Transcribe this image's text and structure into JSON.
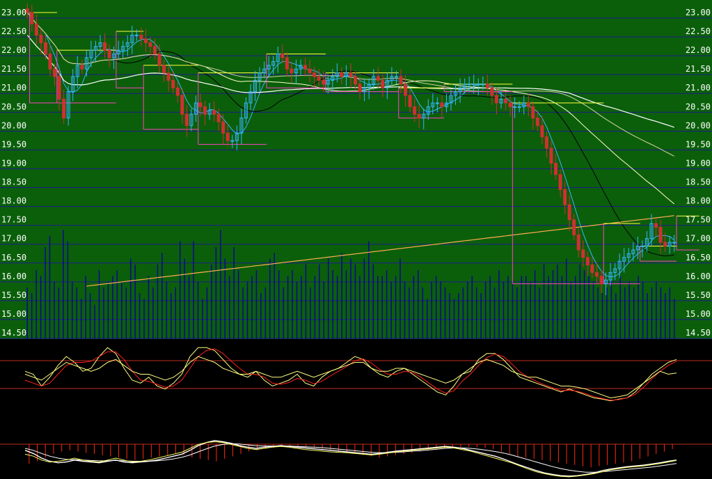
{
  "colors": {
    "price_bg": "#0b5f0b",
    "grid": "#1c1c8a",
    "volume": "#0a0a8a",
    "candle_up": "#35b6ff",
    "candle_down": "#d03030",
    "ma_short": "#ffffff",
    "ma_mid": "#000000",
    "ma_long1": "#ffffc8",
    "ma_long2": "#d2d2a0",
    "ma_orange": "#ffaa50",
    "box_high": "#ffff40",
    "box_low": "#ff40c0",
    "osc_ref": "#c03020",
    "osc_fast": "#ffff80",
    "osc_slow": "#ff2020",
    "macd_hist": "#ff2a10",
    "macd_line": "#ffffff",
    "macd_signal": "#ffff60"
  },
  "chart_data": [
    {
      "type": "candlestick",
      "panel": "price",
      "y_ticks_left": [
        "23.00",
        "22.50",
        "22.00",
        "21.50",
        "21.00",
        "20.50",
        "20.00",
        "19.50",
        "19.00",
        "18.50",
        "18.00",
        "17.50",
        "17.00",
        "16.50",
        "16.00",
        "15.50",
        "15.00",
        "14.50"
      ],
      "y_ticks_right": [
        "23.00",
        "22.50",
        "22.00",
        "21.50",
        "21.00",
        "20.50",
        "20.00",
        "19.50",
        "19.00",
        "18.50",
        "18.00",
        "17.50",
        "17.00",
        "16.50",
        "16.00",
        "15.50",
        "15.00",
        "14.50"
      ],
      "ylim": [
        14.5,
        23.0
      ],
      "grid": true,
      "closes": [
        23.0,
        22.7,
        22.4,
        22.2,
        21.9,
        21.5,
        21.3,
        20.7,
        20.2,
        20.9,
        21.3,
        21.6,
        21.5,
        21.8,
        22.0,
        22.1,
        22.2,
        22.0,
        21.8,
        21.9,
        22.0,
        22.1,
        22.2,
        22.4,
        22.4,
        22.3,
        22.2,
        22.1,
        21.9,
        21.6,
        21.4,
        21.2,
        21.0,
        20.8,
        20.3,
        20.0,
        20.3,
        20.6,
        20.5,
        20.3,
        20.4,
        20.3,
        20.1,
        19.8,
        19.6,
        19.6,
        19.8,
        20.2,
        20.6,
        20.9,
        21.2,
        21.4,
        21.5,
        21.6,
        21.7,
        21.9,
        21.8,
        21.5,
        21.4,
        21.5,
        21.6,
        21.5,
        21.4,
        21.3,
        21.2,
        21.1,
        21.2,
        21.3,
        21.4,
        21.3,
        21.4,
        21.3,
        21.1,
        20.9,
        21.0,
        21.1,
        21.3,
        21.2,
        21.0,
        21.2,
        21.3,
        21.3,
        21.1,
        20.8,
        20.5,
        20.3,
        20.2,
        20.3,
        20.5,
        20.6,
        20.6,
        20.5,
        20.6,
        20.8,
        20.9,
        21.0,
        21.1,
        21.1,
        21.1,
        21.1,
        21.1,
        21.0,
        20.8,
        20.6,
        20.7,
        20.6,
        20.5,
        20.5,
        20.5,
        20.6,
        20.5,
        20.2,
        20.0,
        19.7,
        19.4,
        19.0,
        18.7,
        18.3,
        17.9,
        17.5,
        17.1,
        16.7,
        16.5,
        16.3,
        16.1,
        16.0,
        15.8,
        15.9,
        16.1,
        16.2,
        16.4,
        16.5,
        16.6,
        16.7,
        16.8,
        16.8,
        17.0,
        17.4,
        17.3,
        16.9,
        16.8,
        16.9,
        16.9
      ],
      "box_levels": [
        {
          "from": 1,
          "to": 6,
          "high": 23.0,
          "low": 20.6
        },
        {
          "from": 7,
          "to": 19,
          "high": 22.0,
          "low": 20.6
        },
        {
          "from": 20,
          "to": 25,
          "high": 22.5,
          "low": 21.0
        },
        {
          "from": 26,
          "to": 37,
          "high": 21.6,
          "low": 19.9
        },
        {
          "from": 38,
          "to": 52,
          "high": 21.4,
          "low": 19.5
        },
        {
          "from": 53,
          "to": 65,
          "high": 21.9,
          "low": 21.0
        },
        {
          "from": 66,
          "to": 81,
          "high": 21.4,
          "low": 20.9
        },
        {
          "from": 82,
          "to": 91,
          "high": 21.0,
          "low": 20.2
        },
        {
          "from": 92,
          "to": 106,
          "high": 21.1,
          "low": 20.9
        },
        {
          "from": 107,
          "to": 126,
          "high": 20.6,
          "low": 15.8
        },
        {
          "from": 127,
          "to": 134,
          "high": 17.4,
          "low": 15.8
        },
        {
          "from": 135,
          "to": 142,
          "high": 16.8,
          "low": 16.4
        },
        {
          "from": 143,
          "to": 147,
          "high": 17.6,
          "low": 16.7
        }
      ]
    },
    {
      "type": "bar",
      "panel": "volume",
      "values": [
        0.45,
        0.4,
        0.6,
        0.55,
        0.8,
        0.9,
        0.5,
        0.45,
        0.95,
        0.85,
        0.5,
        0.45,
        0.35,
        0.55,
        0.4,
        0.3,
        0.6,
        0.45,
        0.5,
        0.55,
        0.6,
        0.5,
        0.45,
        0.7,
        0.65,
        0.4,
        0.35,
        0.55,
        0.45,
        0.65,
        0.75,
        0.5,
        0.4,
        0.45,
        0.85,
        0.7,
        0.55,
        0.85,
        0.5,
        0.35,
        0.45,
        0.65,
        0.8,
        0.95,
        0.7,
        0.55,
        0.8,
        0.6,
        0.45,
        0.5,
        0.55,
        0.6,
        0.4,
        0.45,
        0.7,
        0.75,
        0.6,
        0.45,
        0.55,
        0.6,
        0.5,
        0.55,
        0.65,
        0.45,
        0.55,
        0.65,
        0.5,
        0.7,
        0.6,
        0.55,
        0.75,
        0.6,
        0.7,
        0.65,
        0.55,
        0.7,
        0.85,
        0.65,
        0.55,
        0.55,
        0.6,
        0.5,
        0.55,
        0.7,
        0.5,
        0.45,
        0.55,
        0.6,
        0.45,
        0.35,
        0.5,
        0.55,
        0.5,
        0.45,
        0.4,
        0.35,
        0.4,
        0.45,
        0.5,
        0.55,
        0.45,
        0.4,
        0.5,
        0.55,
        0.45,
        0.6,
        0.5,
        0.55,
        0.5,
        0.45,
        0.55,
        0.55,
        0.5,
        0.6,
        0.45,
        0.65,
        0.55,
        0.6,
        0.65,
        0.55,
        0.7,
        0.5,
        0.55,
        0.65,
        0.6,
        0.55,
        0.5,
        0.45,
        0.4,
        0.45,
        0.5,
        0.4,
        0.55,
        0.45,
        0.5,
        0.45,
        0.55,
        0.5,
        0.4,
        0.45,
        0.5,
        0.45,
        0.4,
        0.45,
        0.35
      ]
    },
    {
      "type": "line",
      "panel": "oscillator",
      "series": [
        {
          "values": [
            0.55,
            0.5,
            0.3,
            0.45,
            0.65,
            0.8,
            0.7,
            0.55,
            0.6,
            0.8,
            0.95,
            0.85,
            0.6,
            0.4,
            0.35,
            0.45,
            0.3,
            0.25,
            0.35,
            0.5,
            0.8,
            0.95,
            0.95,
            0.9,
            0.75,
            0.6,
            0.5,
            0.45,
            0.55,
            0.4,
            0.3,
            0.35,
            0.4,
            0.5,
            0.35,
            0.3,
            0.45,
            0.55,
            0.6,
            0.7,
            0.8,
            0.75,
            0.6,
            0.5,
            0.45,
            0.55,
            0.6,
            0.5,
            0.4,
            0.3,
            0.2,
            0.15,
            0.3,
            0.5,
            0.55,
            0.75,
            0.85,
            0.85,
            0.75,
            0.6,
            0.45,
            0.4,
            0.35,
            0.3,
            0.25,
            0.2,
            0.25,
            0.2,
            0.15,
            0.1,
            0.08,
            0.05,
            0.08,
            0.1,
            0.2,
            0.35,
            0.5,
            0.6,
            0.7,
            0.75
          ]
        },
        {
          "values": [
            0.4,
            0.35,
            0.3,
            0.35,
            0.5,
            0.65,
            0.7,
            0.7,
            0.72,
            0.8,
            0.88,
            0.88,
            0.75,
            0.55,
            0.4,
            0.38,
            0.33,
            0.28,
            0.3,
            0.4,
            0.6,
            0.8,
            0.9,
            0.93,
            0.85,
            0.72,
            0.6,
            0.5,
            0.5,
            0.45,
            0.35,
            0.33,
            0.36,
            0.43,
            0.4,
            0.34,
            0.38,
            0.47,
            0.55,
            0.63,
            0.73,
            0.76,
            0.69,
            0.58,
            0.5,
            0.5,
            0.55,
            0.53,
            0.45,
            0.35,
            0.25,
            0.18,
            0.22,
            0.38,
            0.5,
            0.65,
            0.78,
            0.84,
            0.8,
            0.68,
            0.54,
            0.45,
            0.38,
            0.32,
            0.27,
            0.22,
            0.23,
            0.21,
            0.17,
            0.12,
            0.09,
            0.06,
            0.07,
            0.1,
            0.16,
            0.28,
            0.42,
            0.55,
            0.65,
            0.72
          ]
        },
        {
          "values": [
            0.5,
            0.45,
            0.4,
            0.5,
            0.6,
            0.7,
            0.65,
            0.6,
            0.55,
            0.6,
            0.7,
            0.75,
            0.65,
            0.55,
            0.5,
            0.5,
            0.45,
            0.4,
            0.45,
            0.55,
            0.7,
            0.8,
            0.75,
            0.7,
            0.6,
            0.55,
            0.5,
            0.5,
            0.55,
            0.5,
            0.45,
            0.45,
            0.5,
            0.55,
            0.5,
            0.45,
            0.5,
            0.55,
            0.6,
            0.65,
            0.7,
            0.7,
            0.6,
            0.55,
            0.55,
            0.6,
            0.6,
            0.55,
            0.5,
            0.45,
            0.4,
            0.35,
            0.4,
            0.5,
            0.6,
            0.7,
            0.75,
            0.7,
            0.65,
            0.55,
            0.5,
            0.45,
            0.45,
            0.4,
            0.35,
            0.3,
            0.3,
            0.28,
            0.25,
            0.2,
            0.15,
            0.1,
            0.12,
            0.15,
            0.25,
            0.35,
            0.45,
            0.55,
            0.5,
            0.52
          ]
        }
      ]
    },
    {
      "type": "bar+line",
      "panel": "macd",
      "histogram": [
        0.8,
        0.7,
        0.55,
        0.4,
        0.3,
        0.25,
        0.3,
        0.35,
        0.4,
        0.45,
        0.5,
        0.55,
        0.6,
        0.65,
        0.6,
        0.55,
        0.5,
        0.45,
        0.4,
        0.45,
        0.55,
        0.6,
        0.65,
        0.7,
        0.6,
        0.5,
        0.4,
        0.3,
        0.25,
        0.2,
        0.15,
        0.1,
        0.08,
        0.1,
        0.12,
        0.15,
        0.2,
        0.25,
        0.3,
        0.35,
        0.4,
        0.45,
        0.5,
        0.55,
        0.5,
        0.45,
        0.4,
        0.35,
        0.3,
        0.25,
        0.2,
        0.18,
        0.15,
        0.12,
        0.1,
        0.12,
        0.15,
        0.2,
        0.3,
        0.4,
        0.5,
        0.55,
        0.6,
        0.65,
        0.7,
        0.75,
        0.8,
        0.85,
        0.9,
        0.95,
        0.9,
        0.85,
        0.8,
        0.75,
        0.7,
        0.6,
        0.5,
        0.4,
        0.3,
        0.2
      ],
      "series": [
        {
          "values": [
            0.7,
            0.62,
            0.5,
            0.42,
            0.38,
            0.4,
            0.45,
            0.42,
            0.4,
            0.38,
            0.42,
            0.45,
            0.4,
            0.38,
            0.4,
            0.42,
            0.45,
            0.5,
            0.55,
            0.6,
            0.7,
            0.82,
            0.9,
            0.95,
            0.92,
            0.88,
            0.82,
            0.78,
            0.75,
            0.78,
            0.8,
            0.82,
            0.8,
            0.78,
            0.76,
            0.74,
            0.72,
            0.7,
            0.68,
            0.66,
            0.64,
            0.62,
            0.6,
            0.62,
            0.65,
            0.68,
            0.7,
            0.72,
            0.74,
            0.76,
            0.78,
            0.8,
            0.78,
            0.75,
            0.7,
            0.65,
            0.6,
            0.55,
            0.48,
            0.4,
            0.32,
            0.25,
            0.18,
            0.12,
            0.08,
            0.05,
            0.04,
            0.05,
            0.08,
            0.12,
            0.18,
            0.22,
            0.25,
            0.28,
            0.3,
            0.32,
            0.35,
            0.38,
            0.42,
            0.45
          ]
        },
        {
          "values": [
            0.75,
            0.7,
            0.62,
            0.55,
            0.5,
            0.47,
            0.46,
            0.45,
            0.44,
            0.43,
            0.43,
            0.44,
            0.43,
            0.42,
            0.42,
            0.42,
            0.43,
            0.45,
            0.48,
            0.52,
            0.58,
            0.66,
            0.74,
            0.81,
            0.85,
            0.87,
            0.86,
            0.84,
            0.82,
            0.81,
            0.81,
            0.81,
            0.81,
            0.8,
            0.79,
            0.78,
            0.77,
            0.75,
            0.73,
            0.71,
            0.69,
            0.67,
            0.65,
            0.64,
            0.64,
            0.65,
            0.66,
            0.68,
            0.69,
            0.71,
            0.73,
            0.75,
            0.76,
            0.76,
            0.75,
            0.73,
            0.7,
            0.67,
            0.63,
            0.58,
            0.52,
            0.46,
            0.4,
            0.34,
            0.28,
            0.23,
            0.19,
            0.16,
            0.14,
            0.14,
            0.15,
            0.17,
            0.19,
            0.21,
            0.23,
            0.25,
            0.27,
            0.3,
            0.33,
            0.36
          ]
        },
        {
          "values": [
            0.6,
            0.55,
            0.45,
            0.4,
            0.42,
            0.45,
            0.5,
            0.45,
            0.42,
            0.4,
            0.45,
            0.5,
            0.45,
            0.4,
            0.42,
            0.45,
            0.5,
            0.55,
            0.6,
            0.65,
            0.75,
            0.85,
            0.9,
            0.92,
            0.9,
            0.85,
            0.8,
            0.75,
            0.72,
            0.75,
            0.78,
            0.8,
            0.78,
            0.75,
            0.72,
            0.7,
            0.68,
            0.66,
            0.65,
            0.64,
            0.62,
            0.6,
            0.58,
            0.6,
            0.63,
            0.66,
            0.68,
            0.7,
            0.72,
            0.74,
            0.76,
            0.78,
            0.76,
            0.72,
            0.68,
            0.62,
            0.56,
            0.5,
            0.44,
            0.38,
            0.3,
            0.22,
            0.15,
            0.1,
            0.06,
            0.03,
            0.02,
            0.04,
            0.07,
            0.1,
            0.15,
            0.2,
            0.23,
            0.26,
            0.28,
            0.3,
            0.33,
            0.36,
            0.4,
            0.44
          ]
        }
      ]
    }
  ]
}
